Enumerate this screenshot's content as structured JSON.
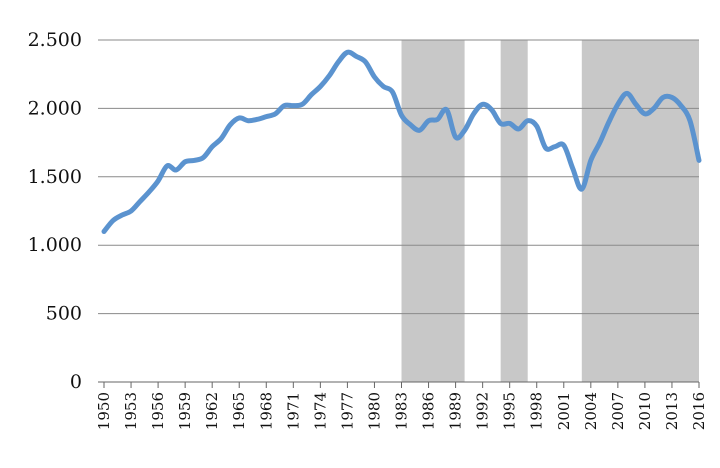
{
  "chart_data": {
    "type": "line",
    "title": "",
    "xlabel": "",
    "ylabel": "",
    "xlim": [
      1950,
      2016
    ],
    "ylim": [
      0,
      2500
    ],
    "y_ticks": [
      0,
      500,
      1000,
      1500,
      2000,
      2500
    ],
    "y_tick_labels": [
      "0",
      "500",
      "1.000",
      "1.500",
      "2.000",
      "2.500"
    ],
    "x_ticks": [
      1950,
      1953,
      1956,
      1959,
      1962,
      1965,
      1968,
      1971,
      1974,
      1977,
      1980,
      1983,
      1986,
      1989,
      1992,
      1995,
      1998,
      2001,
      2004,
      2007,
      2010,
      2013,
      2016
    ],
    "x_tick_labels": [
      "1950",
      "1953",
      "1956",
      "1959",
      "1962",
      "1965",
      "1968",
      "1971",
      "1974",
      "1977",
      "1980",
      "1983",
      "1986",
      "1989",
      "1992",
      "1995",
      "1998",
      "2001",
      "2004",
      "2007",
      "2010",
      "2013",
      "2016"
    ],
    "grid": "horizontal",
    "line_color": "#5b93cf",
    "shade_color": "#c8c8c8",
    "shaded_periods": [
      [
        1983,
        1990
      ],
      [
        1994,
        1997
      ],
      [
        2003,
        2017
      ]
    ],
    "series": [
      {
        "x": [
          1950,
          1951,
          1952,
          1953,
          1954,
          1955,
          1956,
          1957,
          1958,
          1959,
          1960,
          1961,
          1962,
          1963,
          1964,
          1965,
          1966,
          1967,
          1968,
          1969,
          1970,
          1971,
          1972,
          1973,
          1974,
          1975,
          1976,
          1977,
          1978,
          1979,
          1980,
          1981,
          1982,
          1983,
          1984,
          1985,
          1986,
          1987,
          1988,
          1989,
          1990,
          1991,
          1992,
          1993,
          1994,
          1995,
          1996,
          1997,
          1998,
          1999,
          2000,
          2001,
          2002,
          2003,
          2004,
          2005,
          2006,
          2007,
          2008,
          2009,
          2010,
          2011,
          2012,
          2013,
          2014,
          2015,
          2016
        ],
        "values": [
          1100,
          1180,
          1220,
          1250,
          1320,
          1390,
          1470,
          1580,
          1550,
          1610,
          1620,
          1640,
          1720,
          1780,
          1880,
          1930,
          1910,
          1920,
          1940,
          1960,
          2020,
          2020,
          2030,
          2100,
          2160,
          2240,
          2340,
          2410,
          2380,
          2340,
          2230,
          2160,
          2120,
          1950,
          1880,
          1840,
          1910,
          1920,
          1990,
          1790,
          1840,
          1960,
          2030,
          1990,
          1890,
          1890,
          1850,
          1910,
          1870,
          1710,
          1720,
          1730,
          1560,
          1410,
          1620,
          1750,
          1900,
          2030,
          2110,
          2030,
          1960,
          2000,
          2080,
          2080,
          2020,
          1910,
          1620
        ]
      }
    ]
  }
}
